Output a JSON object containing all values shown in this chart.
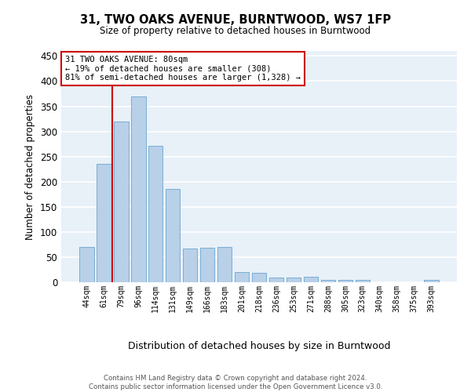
{
  "title": "31, TWO OAKS AVENUE, BURNTWOOD, WS7 1FP",
  "subtitle": "Size of property relative to detached houses in Burntwood",
  "xlabel": "Distribution of detached houses by size in Burntwood",
  "ylabel": "Number of detached properties",
  "categories": [
    "44sqm",
    "61sqm",
    "79sqm",
    "96sqm",
    "114sqm",
    "131sqm",
    "149sqm",
    "166sqm",
    "183sqm",
    "201sqm",
    "218sqm",
    "236sqm",
    "253sqm",
    "271sqm",
    "288sqm",
    "305sqm",
    "323sqm",
    "340sqm",
    "358sqm",
    "375sqm",
    "393sqm"
  ],
  "values": [
    70,
    235,
    320,
    370,
    272,
    185,
    67,
    68,
    70,
    20,
    19,
    10,
    10,
    11,
    5,
    4,
    4,
    0,
    0,
    0,
    5
  ],
  "bar_color": "#b8d0e8",
  "bar_edge_color": "#7aadd4",
  "background_color": "#e8f0f8",
  "annotation_line1": "31 TWO OAKS AVENUE: 80sqm",
  "annotation_line2": "← 19% of detached houses are smaller (308)",
  "annotation_line3": "81% of semi-detached houses are larger (1,328) →",
  "annotation_box_facecolor": "#ffffff",
  "annotation_box_edgecolor": "#cc0000",
  "red_line_color": "#cc0000",
  "ylim": [
    0,
    460
  ],
  "yticks": [
    0,
    50,
    100,
    150,
    200,
    250,
    300,
    350,
    400,
    450
  ],
  "footer_line1": "Contains HM Land Registry data © Crown copyright and database right 2024.",
  "footer_line2": "Contains public sector information licensed under the Open Government Licence v3.0."
}
